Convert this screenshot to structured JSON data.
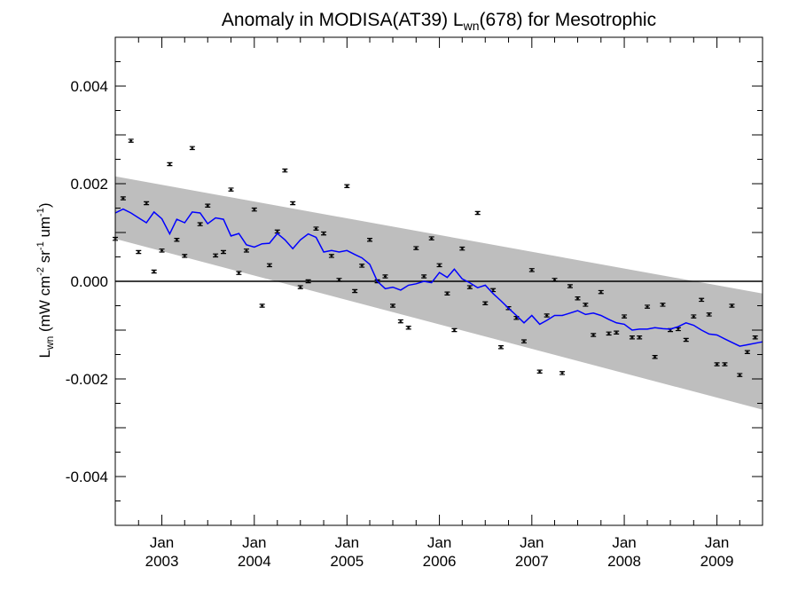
{
  "chart_data": {
    "type": "scatter",
    "title": {
      "main": "Anomaly in MODISA(AT39) L",
      "sub": "wn",
      "rest": "(678) for Mesotrophic"
    },
    "ylabel": {
      "base": "L",
      "base_sub": "wn",
      "unit_open": " (mW cm",
      "exp1": "-2",
      "sr": " sr",
      "exp2": "-1",
      "um": " um",
      "exp3": "-1",
      "unit_close": ")"
    },
    "xlim": [
      "2002-07-01",
      "2009-06-30"
    ],
    "ylim": [
      -0.005,
      0.005
    ],
    "y_ticks": [
      {
        "value": 0.004,
        "label": "0.004"
      },
      {
        "value": 0.002,
        "label": "0.002"
      },
      {
        "value": 0.0,
        "label": "0.000"
      },
      {
        "value": -0.002,
        "label": "-0.002"
      },
      {
        "value": -0.004,
        "label": "-0.004"
      }
    ],
    "x_ticks": [
      {
        "date": "2003-01-01",
        "month": "Jan",
        "year": "2003"
      },
      {
        "date": "2004-01-01",
        "month": "Jan",
        "year": "2004"
      },
      {
        "date": "2005-01-01",
        "month": "Jan",
        "year": "2005"
      },
      {
        "date": "2006-01-01",
        "month": "Jan",
        "year": "2006"
      },
      {
        "date": "2007-01-01",
        "month": "Jan",
        "year": "2007"
      },
      {
        "date": "2008-01-01",
        "month": "Jan",
        "year": "2008"
      },
      {
        "date": "2009-01-01",
        "month": "Jan",
        "year": "2009"
      }
    ],
    "band": {
      "start": "2002-07-01",
      "end": "2009-06-30",
      "upper_start": 0.00215,
      "upper_end": -0.00025,
      "lower_start": 0.00087,
      "lower_end": -0.00263,
      "color": "#bebebe"
    },
    "zero_line": 0.0,
    "scatter_points": [
      [
        "2002-07-01",
        0.00087
      ],
      [
        "2002-08-01",
        0.0017
      ],
      [
        "2002-09-01",
        0.00288
      ],
      [
        "2002-10-01",
        0.0006
      ],
      [
        "2002-11-01",
        0.0016
      ],
      [
        "2002-12-01",
        0.0002
      ],
      [
        "2003-01-01",
        0.00063
      ],
      [
        "2003-02-01",
        0.0024
      ],
      [
        "2003-03-01",
        0.00085
      ],
      [
        "2003-04-01",
        0.00052
      ],
      [
        "2003-05-01",
        0.00273
      ],
      [
        "2003-06-01",
        0.00117
      ],
      [
        "2003-07-01",
        0.00155
      ],
      [
        "2003-08-01",
        0.00053
      ],
      [
        "2003-09-01",
        0.0006
      ],
      [
        "2003-10-01",
        0.00188
      ],
      [
        "2003-11-01",
        0.00017
      ],
      [
        "2003-12-01",
        0.00063
      ],
      [
        "2004-01-01",
        0.00147
      ],
      [
        "2004-02-01",
        -0.0005
      ],
      [
        "2004-03-01",
        0.00033
      ],
      [
        "2004-04-01",
        0.00102
      ],
      [
        "2004-05-01",
        0.00227
      ],
      [
        "2004-06-01",
        0.0016
      ],
      [
        "2004-07-01",
        -0.00012
      ],
      [
        "2004-08-01",
        0.0
      ],
      [
        "2004-09-01",
        0.00108
      ],
      [
        "2004-10-01",
        0.00098
      ],
      [
        "2004-11-01",
        0.00052
      ],
      [
        "2004-12-01",
        3e-05
      ],
      [
        "2005-01-01",
        0.00195
      ],
      [
        "2005-02-01",
        -0.0002
      ],
      [
        "2005-03-01",
        0.00032
      ],
      [
        "2005-04-01",
        0.00085
      ],
      [
        "2005-05-01",
        0.0
      ],
      [
        "2005-06-01",
        0.0001
      ],
      [
        "2005-07-01",
        -0.0005
      ],
      [
        "2005-08-01",
        -0.00082
      ],
      [
        "2005-09-01",
        -0.00095
      ],
      [
        "2005-10-01",
        0.00068
      ],
      [
        "2005-11-01",
        0.0001
      ],
      [
        "2005-12-01",
        0.00088
      ],
      [
        "2006-01-01",
        0.00033
      ],
      [
        "2006-02-01",
        -0.00025
      ],
      [
        "2006-03-01",
        -0.001
      ],
      [
        "2006-04-01",
        0.00067
      ],
      [
        "2006-05-01",
        -0.00012
      ],
      [
        "2006-06-01",
        0.0014
      ],
      [
        "2006-07-01",
        -0.00045
      ],
      [
        "2006-08-01",
        -0.00018
      ],
      [
        "2006-09-01",
        -0.00135
      ],
      [
        "2006-10-01",
        -0.00055
      ],
      [
        "2006-11-01",
        -0.00075
      ],
      [
        "2006-12-01",
        -0.00123
      ],
      [
        "2007-01-01",
        0.00023
      ],
      [
        "2007-02-01",
        -0.00185
      ],
      [
        "2007-03-01",
        -0.0007
      ],
      [
        "2007-04-01",
        3e-05
      ],
      [
        "2007-05-01",
        -0.00188
      ],
      [
        "2007-06-01",
        -0.0001
      ],
      [
        "2007-07-01",
        -0.00035
      ],
      [
        "2007-08-01",
        -0.00048
      ],
      [
        "2007-09-01",
        -0.0011
      ],
      [
        "2007-10-01",
        -0.00022
      ],
      [
        "2007-11-01",
        -0.00107
      ],
      [
        "2007-12-01",
        -0.00105
      ],
      [
        "2008-01-01",
        -0.00072
      ],
      [
        "2008-02-01",
        -0.00115
      ],
      [
        "2008-03-01",
        -0.00115
      ],
      [
        "2008-04-01",
        -0.00052
      ],
      [
        "2008-05-01",
        -0.00155
      ],
      [
        "2008-06-01",
        -0.00048
      ],
      [
        "2008-07-01",
        -0.001
      ],
      [
        "2008-08-01",
        -0.00098
      ],
      [
        "2008-09-01",
        -0.0012
      ],
      [
        "2008-10-01",
        -0.00072
      ],
      [
        "2008-11-01",
        -0.00038
      ],
      [
        "2008-12-01",
        -0.00068
      ],
      [
        "2009-01-01",
        -0.0017
      ],
      [
        "2009-02-01",
        -0.0017
      ],
      [
        "2009-03-01",
        -0.0005
      ],
      [
        "2009-04-01",
        -0.00192
      ],
      [
        "2009-05-01",
        -0.00145
      ],
      [
        "2009-06-01",
        -0.00115
      ]
    ],
    "error_bar_halfwidth": 3e-05,
    "running_mean": {
      "color": "#0000ff",
      "points": [
        [
          "2002-07-01",
          0.0014
        ],
        [
          "2002-08-01",
          0.00148
        ],
        [
          "2002-09-01",
          0.0014
        ],
        [
          "2002-10-01",
          0.0013
        ],
        [
          "2002-11-01",
          0.0012
        ],
        [
          "2002-12-01",
          0.00142
        ],
        [
          "2003-01-01",
          0.00128
        ],
        [
          "2003-02-01",
          0.00097
        ],
        [
          "2003-03-01",
          0.00127
        ],
        [
          "2003-04-01",
          0.0012
        ],
        [
          "2003-05-01",
          0.00142
        ],
        [
          "2003-06-01",
          0.0014
        ],
        [
          "2003-07-01",
          0.00118
        ],
        [
          "2003-08-01",
          0.0013
        ],
        [
          "2003-09-01",
          0.00127
        ],
        [
          "2003-10-01",
          0.00093
        ],
        [
          "2003-11-01",
          0.00098
        ],
        [
          "2003-12-01",
          0.00075
        ],
        [
          "2004-01-01",
          0.0007
        ],
        [
          "2004-02-01",
          0.00077
        ],
        [
          "2004-03-01",
          0.00078
        ],
        [
          "2004-04-01",
          0.00098
        ],
        [
          "2004-05-01",
          0.00085
        ],
        [
          "2004-06-01",
          0.00067
        ],
        [
          "2004-07-01",
          0.00085
        ],
        [
          "2004-08-01",
          0.00097
        ],
        [
          "2004-09-01",
          0.0009
        ],
        [
          "2004-10-01",
          0.0006
        ],
        [
          "2004-11-01",
          0.00063
        ],
        [
          "2004-12-01",
          0.0006
        ],
        [
          "2005-01-01",
          0.00063
        ],
        [
          "2005-02-01",
          0.00055
        ],
        [
          "2005-03-01",
          0.00048
        ],
        [
          "2005-04-01",
          0.00035
        ],
        [
          "2005-05-01",
          0.0
        ],
        [
          "2005-06-01",
          -0.00015
        ],
        [
          "2005-07-01",
          -0.00012
        ],
        [
          "2005-08-01",
          -0.00018
        ],
        [
          "2005-09-01",
          -8e-05
        ],
        [
          "2005-10-01",
          -5e-05
        ],
        [
          "2005-11-01",
          0.0
        ],
        [
          "2005-12-01",
          -3e-05
        ],
        [
          "2006-01-01",
          0.00018
        ],
        [
          "2006-02-01",
          8e-05
        ],
        [
          "2006-03-01",
          0.00025
        ],
        [
          "2006-04-01",
          5e-05
        ],
        [
          "2006-05-01",
          -3e-05
        ],
        [
          "2006-06-01",
          -0.00013
        ],
        [
          "2006-07-01",
          -8e-05
        ],
        [
          "2006-08-01",
          -0.00025
        ],
        [
          "2006-09-01",
          -0.0004
        ],
        [
          "2006-10-01",
          -0.00055
        ],
        [
          "2006-11-01",
          -0.0007
        ],
        [
          "2006-12-01",
          -0.00085
        ],
        [
          "2007-01-01",
          -0.0007
        ],
        [
          "2007-02-01",
          -0.00088
        ],
        [
          "2007-03-01",
          -0.0008
        ],
        [
          "2007-04-01",
          -0.0007
        ],
        [
          "2007-05-01",
          -0.0007
        ],
        [
          "2007-06-01",
          -0.00065
        ],
        [
          "2007-07-01",
          -0.0006
        ],
        [
          "2007-08-01",
          -0.00068
        ],
        [
          "2007-09-01",
          -0.00065
        ],
        [
          "2007-10-01",
          -0.0007
        ],
        [
          "2007-11-01",
          -0.00078
        ],
        [
          "2007-12-01",
          -0.00085
        ],
        [
          "2008-01-01",
          -0.00088
        ],
        [
          "2008-02-01",
          -0.001
        ],
        [
          "2008-03-01",
          -0.00098
        ],
        [
          "2008-04-01",
          -0.00098
        ],
        [
          "2008-05-01",
          -0.00095
        ],
        [
          "2008-06-01",
          -0.00097
        ],
        [
          "2008-07-01",
          -0.00098
        ],
        [
          "2008-08-01",
          -0.00093
        ],
        [
          "2008-09-01",
          -0.00085
        ],
        [
          "2008-10-01",
          -0.0009
        ],
        [
          "2008-11-01",
          -0.001
        ],
        [
          "2008-12-01",
          -0.00108
        ],
        [
          "2009-01-01",
          -0.0011
        ],
        [
          "2009-02-01",
          -0.00118
        ],
        [
          "2009-03-01",
          -0.00125
        ],
        [
          "2009-04-01",
          -0.00133
        ],
        [
          "2009-05-01",
          -0.0013
        ],
        [
          "2009-06-30",
          -0.00124
        ]
      ]
    },
    "grid": false,
    "legend": "none"
  }
}
